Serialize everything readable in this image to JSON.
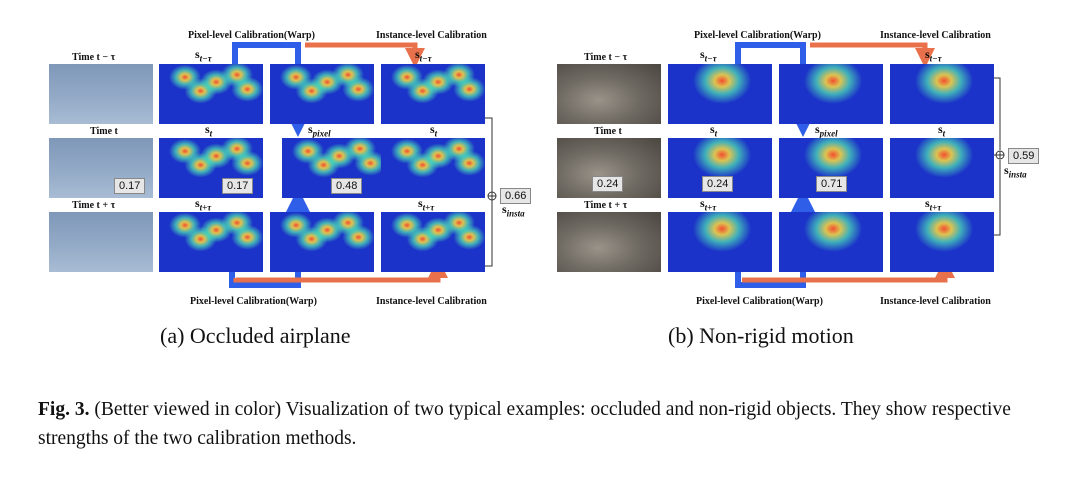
{
  "panel_a": {
    "time_labels": {
      "prev": "Time t − τ",
      "cur": "Time t",
      "next": "Time t + τ"
    },
    "col_labels": {
      "s_prev": "s",
      "s_prev_sub": "t−τ",
      "s_cur": "s",
      "s_cur_sub": "t",
      "s_next": "s",
      "s_next_sub": "t+τ",
      "s_pixel": "s",
      "s_pixel_sub": "pixel"
    },
    "top_titles": {
      "warp": "Pixel-level Calibration(Warp)",
      "instance": "Instance-level Calibration"
    },
    "bottom_titles": {
      "warp": "Pixel-level Calibration(Warp)",
      "instance": "Instance-level Calibration"
    },
    "scores": {
      "time_t": "0.17",
      "s_t": "0.17",
      "s_pixel": "0.48",
      "s_insta": "0.66"
    },
    "s_insta_label": "s",
    "s_insta_sub": "insta",
    "caption": "(a) Occluded airplane"
  },
  "panel_b": {
    "time_labels": {
      "prev": "Time t − τ",
      "cur": "Time t",
      "next": "Time t + τ"
    },
    "col_labels": {
      "s_prev": "s",
      "s_prev_sub": "t−τ",
      "s_cur": "s",
      "s_cur_sub": "t",
      "s_next": "s",
      "s_next_sub": "t+τ",
      "s_pixel": "s",
      "s_pixel_sub": "pixel"
    },
    "top_titles": {
      "warp": "Pixel-level Calibration(Warp)",
      "instance": "Instance-level Calibration"
    },
    "bottom_titles": {
      "warp": "Pixel-level Calibration(Warp)",
      "instance": "Instance-level Calibration"
    },
    "scores": {
      "time_t": "0.24",
      "s_t": "0.24",
      "s_pixel": "0.71",
      "s_insta": "0.59"
    },
    "s_insta_label": "s",
    "s_insta_sub": "insta",
    "caption": "(b) Non-rigid motion"
  },
  "figure_caption": {
    "label": "Fig. 3.",
    "text": " (Better viewed in color) Visualization of two typical examples: occluded and non-rigid objects. They show respective strengths of the two calibration methods."
  },
  "colors": {
    "arrow_blue": "#2f5ee8",
    "arrow_orange": "#e8704a",
    "heat_bg": "#1b33c8"
  }
}
